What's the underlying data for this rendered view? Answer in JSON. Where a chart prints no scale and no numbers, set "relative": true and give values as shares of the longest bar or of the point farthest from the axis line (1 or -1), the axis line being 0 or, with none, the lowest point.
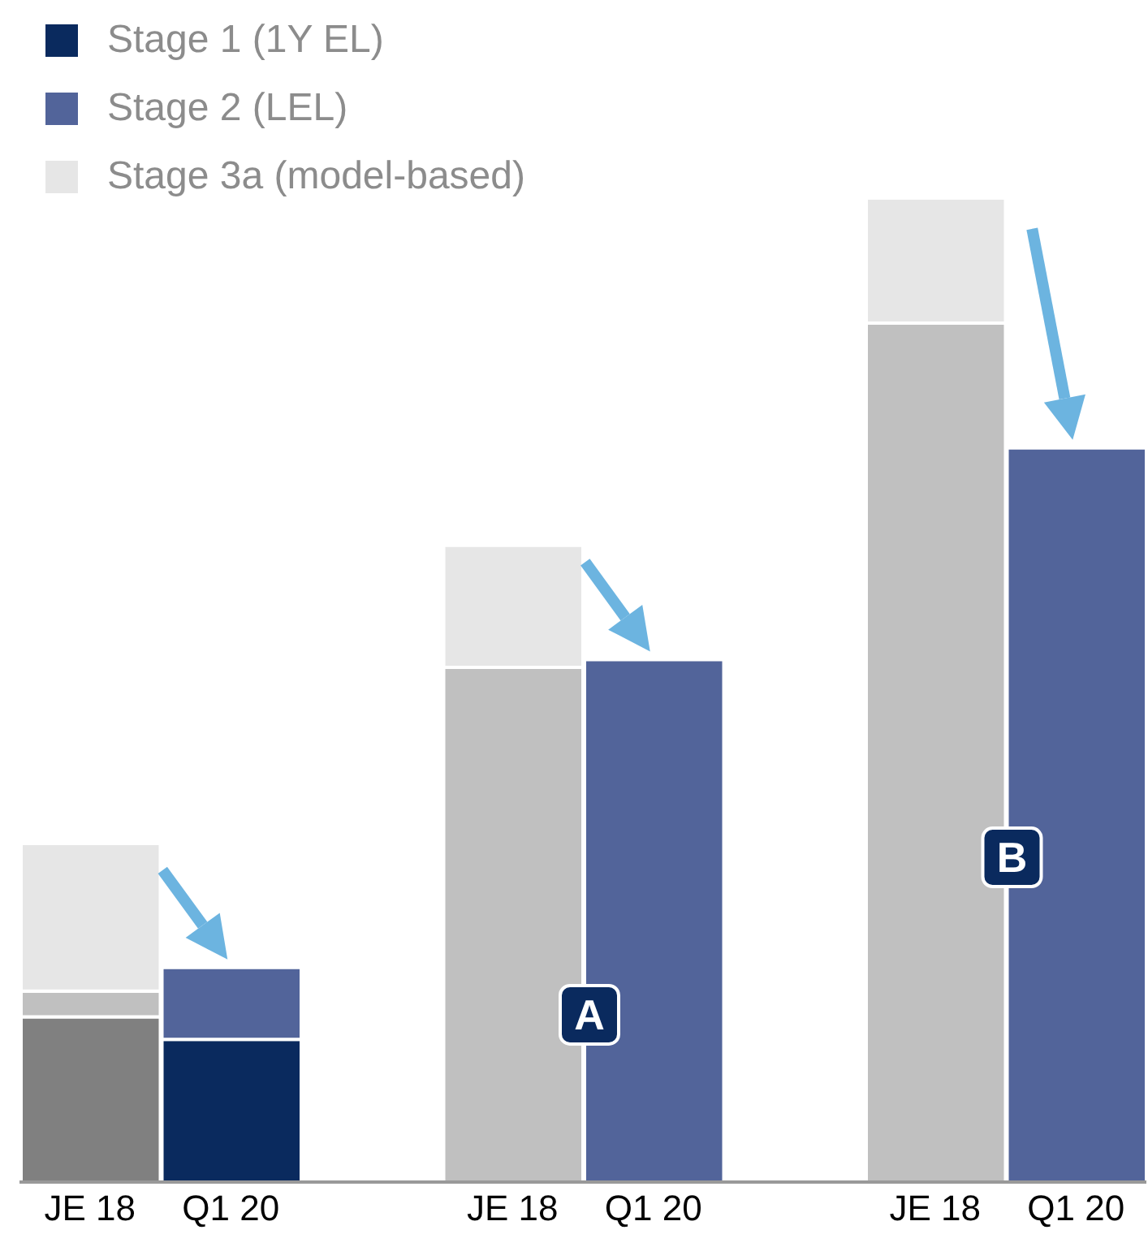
{
  "chart_data": {
    "type": "bar",
    "relative": true,
    "stacked": true,
    "legend": "top left",
    "categories": [
      "JE 18",
      "Q1 20",
      "JE 18",
      "Q1 20",
      "JE 18",
      "Q1 20"
    ],
    "series": [
      {
        "name": "Stage 1 (1Y EL)",
        "color": "#0a2a5e",
        "colors": [
          "#808080",
          "#0a2a5e",
          "#808080",
          "#0a2a5e",
          "#808080",
          "#0a2a5e"
        ],
        "values": [
          0.168,
          0.145,
          null,
          null,
          null,
          null
        ]
      },
      {
        "name": "Stage 2 (LEL)",
        "color": "#52649a",
        "colors": [
          "#c0c0c0",
          "#52649a",
          "#c0c0c0",
          "#52649a",
          "#c0c0c0",
          "#52649a"
        ],
        "values": [
          0.026,
          0.073,
          0.523,
          0.531,
          0.873,
          0.746
        ]
      },
      {
        "name": "Stage 3a (model-based)",
        "color": "#e6e6e6",
        "values": [
          0.15,
          null,
          0.124,
          null,
          0.127,
          null
        ]
      }
    ],
    "annotations": [
      "A",
      "B"
    ]
  }
}
